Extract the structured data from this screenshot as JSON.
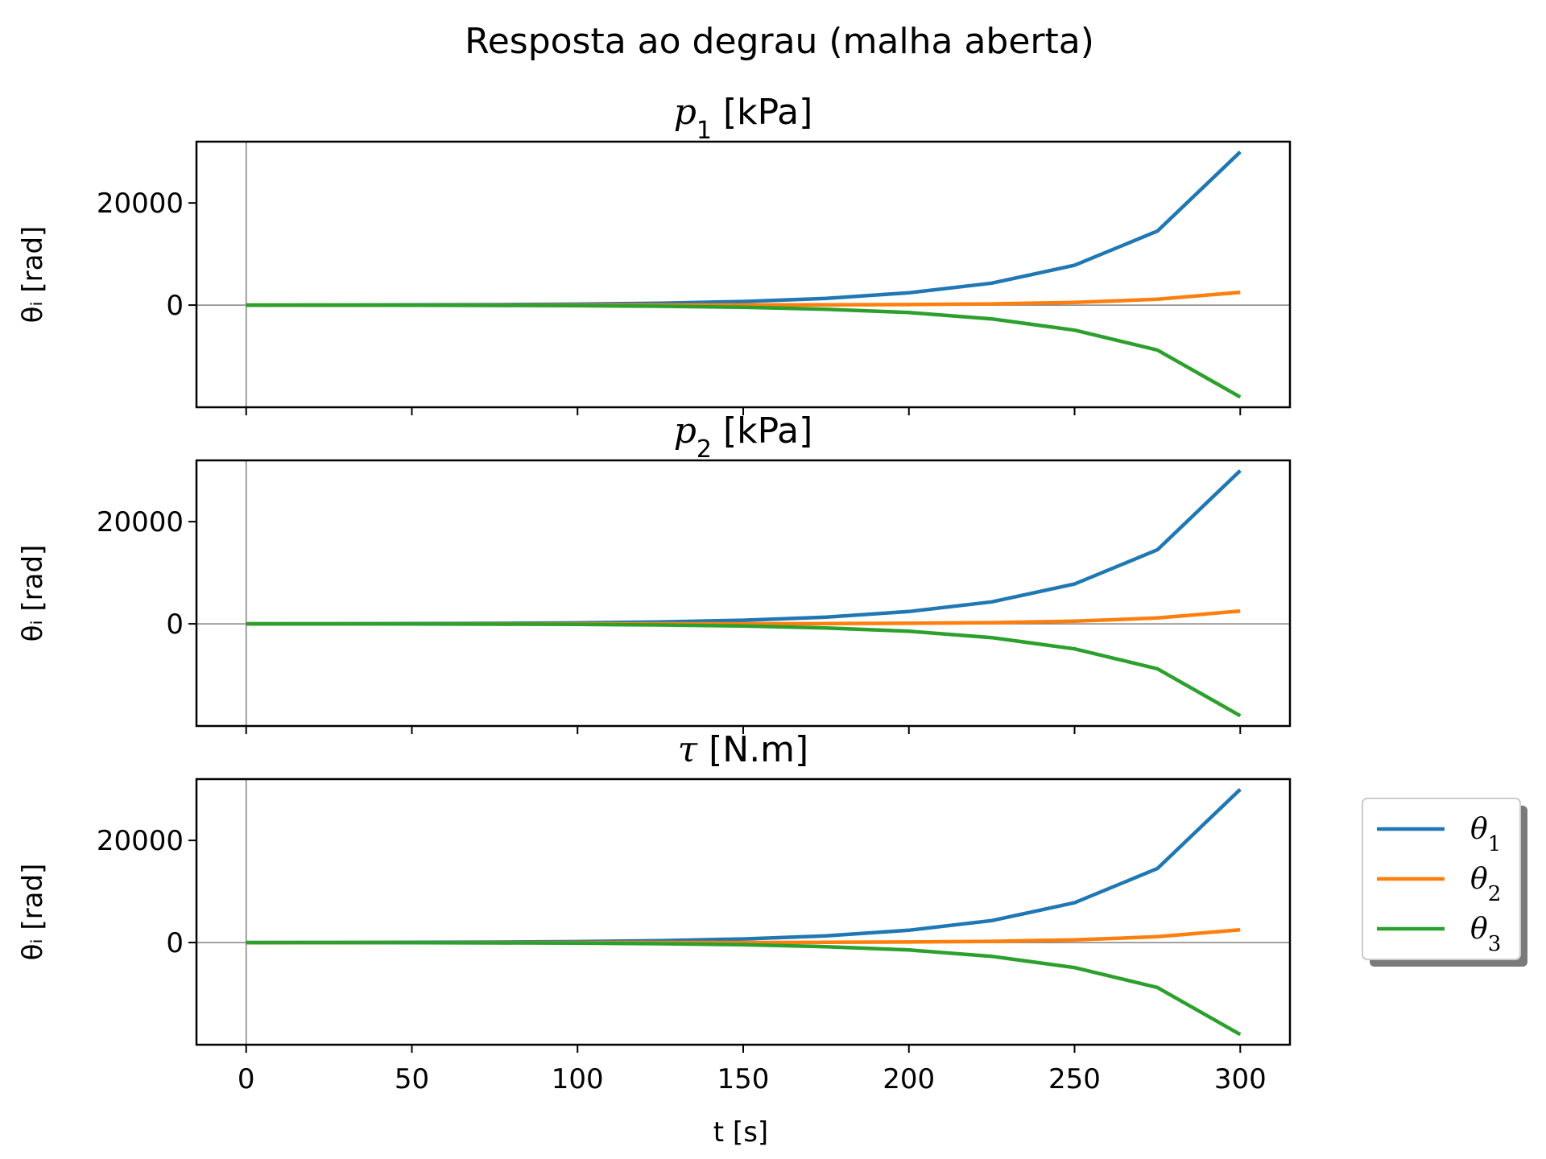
{
  "chart_data": {
    "type": "line",
    "suptitle": "Resposta ao degrau (malha aberta)",
    "xlabel": "t [s]",
    "xlim": [
      -15,
      315
    ],
    "ylim": [
      -20000,
      32000
    ],
    "xticks": [
      0,
      50,
      100,
      150,
      200,
      250,
      300
    ],
    "yticks": [
      0,
      20000
    ],
    "shared_x": true,
    "grid": false,
    "reference_lines": {
      "x": 0,
      "y": 0
    },
    "x": [
      0,
      25,
      50,
      75,
      100,
      125,
      150,
      175,
      200,
      225,
      250,
      275,
      300
    ],
    "legend": {
      "placement": "right, outside the bottom subplot",
      "entries": [
        "θ1",
        "θ2",
        "θ3"
      ],
      "shadow": true
    },
    "colors": {
      "θ1": "#1f77b4",
      "θ2": "#ff7f0e",
      "θ3": "#2ca02c"
    },
    "subplots": [
      {
        "title": "p1 [kPa]",
        "ylabel": "θᵢ [rad]",
        "series": [
          {
            "name": "θ1",
            "values": [
              0,
              15,
              45,
              95,
              190,
              370,
              700,
              1300,
              2400,
              4300,
              7800,
              14500,
              30000
            ]
          },
          {
            "name": "θ2",
            "values": [
              0,
              0,
              0,
              2,
              5,
              10,
              20,
              50,
              110,
              240,
              520,
              1150,
              2500
            ]
          },
          {
            "name": "θ3",
            "values": [
              0,
              -10,
              -30,
              -60,
              -120,
              -230,
              -430,
              -800,
              -1450,
              -2700,
              -4900,
              -8800,
              -18000
            ]
          }
        ]
      },
      {
        "title": "p2 [kPa]",
        "ylabel": "θᵢ [rad]",
        "series": [
          {
            "name": "θ1",
            "values": [
              0,
              15,
              45,
              95,
              190,
              370,
              700,
              1300,
              2400,
              4300,
              7800,
              14500,
              30000
            ]
          },
          {
            "name": "θ2",
            "values": [
              0,
              0,
              0,
              2,
              5,
              10,
              20,
              50,
              110,
              240,
              520,
              1150,
              2500
            ]
          },
          {
            "name": "θ3",
            "values": [
              0,
              -10,
              -30,
              -60,
              -120,
              -230,
              -430,
              -800,
              -1450,
              -2700,
              -4900,
              -8800,
              -18000
            ]
          }
        ]
      },
      {
        "title": "τ [N.m]",
        "ylabel": "θᵢ [rad]",
        "series": [
          {
            "name": "θ1",
            "values": [
              0,
              15,
              45,
              95,
              190,
              370,
              700,
              1300,
              2400,
              4300,
              7800,
              14500,
              30000
            ]
          },
          {
            "name": "θ2",
            "values": [
              0,
              0,
              0,
              2,
              5,
              10,
              20,
              50,
              110,
              240,
              520,
              1150,
              2500
            ]
          },
          {
            "name": "θ3",
            "values": [
              0,
              -10,
              -30,
              -60,
              -120,
              -230,
              -430,
              -800,
              -1450,
              -2700,
              -4900,
              -8800,
              -18000
            ]
          }
        ]
      }
    ]
  }
}
